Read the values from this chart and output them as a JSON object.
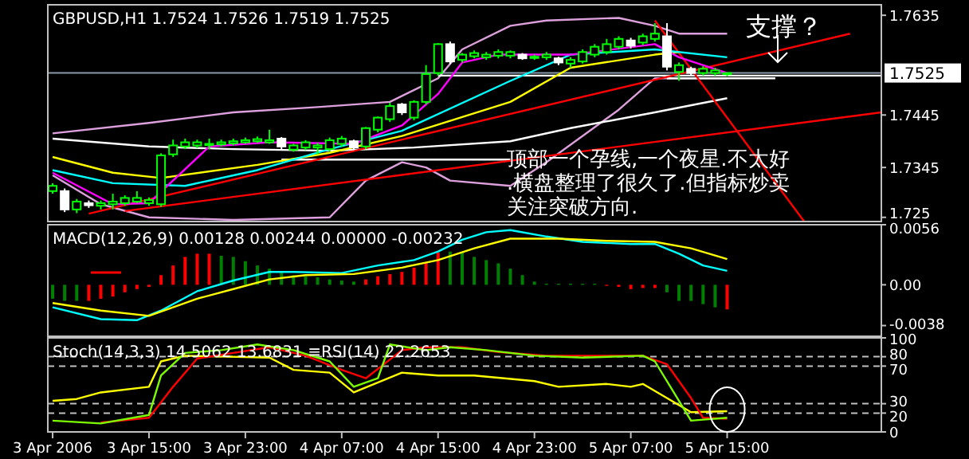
{
  "chart_data": [
    {
      "type": "candlestick",
      "title": "GBPUSD,H1 1.7524 1.7526 1.7519 1.7525",
      "x": [
        "2006-04-03T07:00",
        "2006-04-03T08:00",
        "2006-04-03T09:00",
        "2006-04-03T10:00",
        "2006-04-03T11:00",
        "2006-04-03T12:00",
        "2006-04-03T13:00",
        "2006-04-03T14:00",
        "2006-04-03T15:00",
        "2006-04-03T16:00",
        "2006-04-03T17:00",
        "2006-04-03T18:00",
        "2006-04-03T19:00",
        "2006-04-03T20:00",
        "2006-04-03T21:00",
        "2006-04-03T22:00",
        "2006-04-03T23:00",
        "2006-04-04T00:00",
        "2006-04-04T01:00",
        "2006-04-04T02:00",
        "2006-04-04T03:00",
        "2006-04-04T04:00",
        "2006-04-04T05:00",
        "2006-04-04T06:00",
        "2006-04-04T07:00",
        "2006-04-04T08:00",
        "2006-04-04T09:00",
        "2006-04-04T10:00",
        "2006-04-04T11:00",
        "2006-04-04T12:00",
        "2006-04-04T13:00",
        "2006-04-04T14:00",
        "2006-04-04T15:00",
        "2006-04-04T16:00",
        "2006-04-04T17:00",
        "2006-04-04T18:00",
        "2006-04-04T19:00",
        "2006-04-04T20:00",
        "2006-04-04T21:00",
        "2006-04-04T22:00",
        "2006-04-04T23:00",
        "2006-04-05T00:00",
        "2006-04-05T01:00",
        "2006-04-05T02:00",
        "2006-04-05T03:00",
        "2006-04-05T04:00",
        "2006-04-05T05:00",
        "2006-04-05T06:00",
        "2006-04-05T07:00",
        "2006-04-05T08:00",
        "2006-04-05T09:00",
        "2006-04-05T10:00",
        "2006-04-05T11:00",
        "2006-04-05T12:00",
        "2006-04-05T13:00",
        "2006-04-05T14:00",
        "2006-04-05T15:00"
      ],
      "ohlc": [
        [
          1.73,
          1.7315,
          1.7295,
          1.731
        ],
        [
          1.73,
          1.7305,
          1.726,
          1.7265
        ],
        [
          1.7265,
          1.7285,
          1.7258,
          1.728
        ],
        [
          1.7277,
          1.7282,
          1.7268,
          1.7273
        ],
        [
          1.7272,
          1.7282,
          1.7265,
          1.7277
        ],
        [
          1.7275,
          1.7295,
          1.7265,
          1.728
        ],
        [
          1.7277,
          1.7292,
          1.7272,
          1.7287
        ],
        [
          1.728,
          1.73,
          1.7277,
          1.7287
        ],
        [
          1.7277,
          1.7288,
          1.7272,
          1.7283
        ],
        [
          1.7275,
          1.7372,
          1.727,
          1.7368
        ],
        [
          1.737,
          1.7398,
          1.7365,
          1.7387
        ],
        [
          1.7385,
          1.74,
          1.738,
          1.7393
        ],
        [
          1.7387,
          1.7398,
          1.7382,
          1.7393
        ],
        [
          1.7388,
          1.74,
          1.738,
          1.739
        ],
        [
          1.7389,
          1.7398,
          1.7385,
          1.7393
        ],
        [
          1.7391,
          1.74,
          1.7387,
          1.7395
        ],
        [
          1.7393,
          1.7402,
          1.739,
          1.7397
        ],
        [
          1.7395,
          1.7404,
          1.7392,
          1.7399
        ],
        [
          1.7393,
          1.7417,
          1.739,
          1.7397
        ],
        [
          1.74,
          1.7403,
          1.738,
          1.7385
        ],
        [
          1.7379,
          1.739,
          1.7375,
          1.7387
        ],
        [
          1.7383,
          1.7397,
          1.7378,
          1.7393
        ],
        [
          1.7383,
          1.7392,
          1.737,
          1.7387
        ],
        [
          1.738,
          1.7402,
          1.7375,
          1.7397
        ],
        [
          1.739,
          1.7405,
          1.7385,
          1.74
        ],
        [
          1.7395,
          1.7398,
          1.7378,
          1.7383
        ],
        [
          1.7385,
          1.7422,
          1.738,
          1.742
        ],
        [
          1.7417,
          1.7442,
          1.7412,
          1.744
        ],
        [
          1.7437,
          1.7468,
          1.7432,
          1.7462
        ],
        [
          1.7465,
          1.7468,
          1.7445,
          1.745
        ],
        [
          1.744,
          1.7473,
          1.7435,
          1.747
        ],
        [
          1.747,
          1.754,
          1.7465,
          1.7523
        ],
        [
          1.7525,
          1.7582,
          1.752,
          1.758
        ],
        [
          1.758,
          1.7585,
          1.7542,
          1.7547
        ],
        [
          1.755,
          1.7563,
          1.7545,
          1.756
        ],
        [
          1.7557,
          1.7568,
          1.7553,
          1.7563
        ],
        [
          1.7555,
          1.7565,
          1.755,
          1.756
        ],
        [
          1.7558,
          1.757,
          1.7553,
          1.7565
        ],
        [
          1.7558,
          1.7568,
          1.7553,
          1.7565
        ],
        [
          1.756,
          1.7563,
          1.755,
          1.7553
        ],
        [
          1.7555,
          1.756,
          1.755,
          1.7556
        ],
        [
          1.7555,
          1.7565,
          1.755,
          1.756
        ],
        [
          1.7553,
          1.7556,
          1.754,
          1.7545
        ],
        [
          1.7543,
          1.7555,
          1.7535,
          1.755
        ],
        [
          1.7547,
          1.757,
          1.7543,
          1.7565
        ],
        [
          1.756,
          1.758,
          1.7555,
          1.7575
        ],
        [
          1.7565,
          1.759,
          1.756,
          1.758
        ],
        [
          1.7575,
          1.7595,
          1.757,
          1.759
        ],
        [
          1.7587,
          1.7592,
          1.7572,
          1.7577
        ],
        [
          1.7583,
          1.76,
          1.7578,
          1.7595
        ],
        [
          1.759,
          1.762,
          1.7585,
          1.76
        ],
        [
          1.7595,
          1.762,
          1.753,
          1.7537
        ],
        [
          1.7527,
          1.7545,
          1.751,
          1.754
        ],
        [
          1.7533,
          1.7537,
          1.752,
          1.7525
        ],
        [
          1.7525,
          1.7538,
          1.752,
          1.7533
        ],
        [
          1.7525,
          1.7535,
          1.752,
          1.753
        ],
        [
          1.7524,
          1.7526,
          1.7519,
          1.7525
        ]
      ],
      "series": [
        {
          "type": "line",
          "color": "#dda0dd",
          "x": [
            "2006-04-03T07:00",
            "2006-04-03T15:00",
            "2006-04-03T22:00",
            "2006-04-04T05:00",
            "2006-04-04T11:00",
            "2006-04-04T15:00",
            "2006-04-04T17:00",
            "2006-04-04T21:00",
            "2006-04-05T00:00",
            "2006-04-05T06:00",
            "2006-04-05T09:00",
            "2006-04-05T11:00",
            "2006-04-05T15:00"
          ],
          "values": [
            1.741,
            1.743,
            1.745,
            1.746,
            1.747,
            1.7515,
            1.757,
            1.7615,
            1.7625,
            1.763,
            1.7615,
            1.76,
            1.76
          ]
        },
        {
          "type": "line",
          "color": "#dda0dd",
          "x": [
            "2006-04-03T07:00",
            "2006-04-03T11:00",
            "2006-04-03T15:00",
            "2006-04-03T22:00",
            "2006-04-04T06:00",
            "2006-04-04T09:00",
            "2006-04-04T12:00",
            "2006-04-04T14:00",
            "2006-04-04T16:00",
            "2006-04-04T21:00",
            "2006-04-05T00:00",
            "2006-04-05T06:00",
            "2006-04-05T09:00",
            "2006-04-05T15:00"
          ],
          "values": [
            1.733,
            1.7275,
            1.725,
            1.7245,
            1.725,
            1.732,
            1.7355,
            1.7345,
            1.732,
            1.731,
            1.7355,
            1.7455,
            1.7515,
            1.7515
          ]
        },
        {
          "type": "line",
          "color": "#ffffff",
          "x": [
            "2006-04-03T07:00",
            "2006-04-03T15:00",
            "2006-04-03T22:00",
            "2006-04-04T06:00",
            "2006-04-04T13:00",
            "2006-04-04T21:00",
            "2006-04-05T02:00",
            "2006-04-05T09:00",
            "2006-04-05T15:00"
          ],
          "values": [
            1.74,
            1.7385,
            1.738,
            1.7377,
            1.7383,
            1.7395,
            1.742,
            1.745,
            1.7477
          ]
        },
        {
          "type": "line",
          "color": "#ffffff",
          "x": [
            "2006-04-04T02:00",
            "2006-04-04T21:00"
          ],
          "values": [
            1.736,
            1.736
          ]
        },
        {
          "type": "line",
          "color": "#ffffff",
          "x": [
            "2006-04-04T15:00",
            "2006-04-06T03:48"
          ],
          "values": [
            1.752,
            1.752
          ]
        },
        {
          "type": "line",
          "color": "#ffffff",
          "x": [
            "2006-04-05T10:00",
            "2006-04-05T19:00"
          ],
          "values": [
            1.7515,
            1.7515
          ]
        },
        {
          "type": "line",
          "color": "#ff0000",
          "x": [
            "2006-04-03T10:00",
            "2006-04-06T01:12"
          ],
          "values": [
            1.7257,
            1.76
          ]
        },
        {
          "type": "line",
          "color": "#ff0000",
          "x": [
            "2006-04-03T13:00",
            "2006-04-06T03:48"
          ],
          "values": [
            1.7262,
            1.745
          ]
        },
        {
          "type": "line",
          "color": "#ff0000",
          "x": [
            "2006-04-05T09:00",
            "2006-04-05T21:24"
          ],
          "values": [
            1.7625,
            1.7242
          ]
        },
        {
          "type": "line",
          "color": "#ffff00",
          "x": [
            "2006-04-03T07:00",
            "2006-04-03T12:00",
            "2006-04-03T16:00",
            "2006-04-04T00:00",
            "2006-04-04T06:00",
            "2006-04-04T12:00",
            "2006-04-04T21:00",
            "2006-04-05T02:00",
            "2006-04-05T09:00",
            "2006-04-05T11:00"
          ],
          "values": [
            1.7365,
            1.7335,
            1.7325,
            1.735,
            1.7373,
            1.7405,
            1.747,
            1.7535,
            1.756,
            1.7565
          ]
        },
        {
          "type": "line",
          "color": "#00ffff",
          "x": [
            "2006-04-03T07:00",
            "2006-04-03T12:00",
            "2006-04-03T18:00",
            "2006-04-04T00:00",
            "2006-04-04T06:00",
            "2006-04-04T12:00",
            "2006-04-04T21:00",
            "2006-04-05T02:00",
            "2006-04-05T09:00",
            "2006-04-05T15:00"
          ],
          "values": [
            1.734,
            1.7315,
            1.731,
            1.734,
            1.738,
            1.7415,
            1.751,
            1.756,
            1.757,
            1.7555
          ]
        },
        {
          "type": "line",
          "color": "#ff00ff",
          "x": [
            "2006-04-03T07:00",
            "2006-04-03T12:00",
            "2006-04-03T15:00",
            "2006-04-03T20:00",
            "2006-04-04T01:00",
            "2006-04-04T08:00",
            "2006-04-04T12:00",
            "2006-04-04T15:00",
            "2006-04-04T17:00",
            "2006-04-04T20:00",
            "2006-04-05T02:00",
            "2006-04-05T09:00",
            "2006-04-05T11:00",
            "2006-04-05T15:00"
          ],
          "values": [
            1.7335,
            1.7275,
            1.7277,
            1.7385,
            1.7393,
            1.739,
            1.7425,
            1.7485,
            1.7545,
            1.756,
            1.756,
            1.758,
            1.7555,
            1.7525
          ]
        }
      ],
      "xlim": [
        "2006-04-03T06:36",
        "2006-04-06T03:48"
      ],
      "ylim": [
        1.7242,
        1.7655
      ],
      "yticks": [
        1.7635,
        1.7445,
        1.7345,
        1.725
      ],
      "ref_lines": [
        {
          "axis": "y",
          "value": 1.7525,
          "label": "1.7525",
          "color": "#8899aa"
        }
      ],
      "annotations": [
        "支撑？",
        "顶部一个孕线,一个夜星.不太好",
        ".横盘整理了很久了.但指标炒卖",
        "关注突破方向."
      ],
      "tick_labels": "y"
    },
    {
      "type": "bar",
      "title": "MACD(12,26,9) 0.00128 0.00244 0.00000 -0.00232",
      "series": [
        {
          "type": "bar",
          "x": [
            "2006-04-03T07:00",
            "2006-04-03T08:00",
            "2006-04-03T09:00",
            "2006-04-03T10:00",
            "2006-04-03T11:00",
            "2006-04-03T12:00",
            "2006-04-03T13:00",
            "2006-04-03T14:00",
            "2006-04-03T15:00",
            "2006-04-03T16:00",
            "2006-04-03T17:00",
            "2006-04-03T18:00",
            "2006-04-03T19:00",
            "2006-04-03T20:00",
            "2006-04-03T21:00",
            "2006-04-03T22:00",
            "2006-04-03T23:00",
            "2006-04-04T00:00",
            "2006-04-04T01:00",
            "2006-04-04T02:00",
            "2006-04-04T03:00",
            "2006-04-04T04:00",
            "2006-04-04T05:00",
            "2006-04-04T06:00",
            "2006-04-04T07:00",
            "2006-04-04T08:00",
            "2006-04-04T09:00",
            "2006-04-04T10:00",
            "2006-04-04T11:00",
            "2006-04-04T12:00",
            "2006-04-04T13:00",
            "2006-04-04T14:00",
            "2006-04-04T15:00",
            "2006-04-04T16:00",
            "2006-04-04T17:00",
            "2006-04-04T18:00",
            "2006-04-04T19:00",
            "2006-04-04T20:00",
            "2006-04-04T21:00",
            "2006-04-04T22:00",
            "2006-04-04T23:00",
            "2006-04-05T00:00",
            "2006-04-05T01:00",
            "2006-04-05T02:00",
            "2006-04-05T03:00",
            "2006-04-05T04:00",
            "2006-04-05T05:00",
            "2006-04-05T06:00",
            "2006-04-05T07:00",
            "2006-04-05T08:00",
            "2006-04-05T09:00",
            "2006-04-05T10:00",
            "2006-04-05T11:00",
            "2006-04-05T12:00",
            "2006-04-05T13:00",
            "2006-04-05T14:00",
            "2006-04-05T15:00"
          ],
          "values": [
            -0.0013,
            -0.0015,
            -0.0015,
            -0.0015,
            -0.0013,
            -0.0011,
            -0.0007,
            -0.0004,
            -0.0002,
            0.0009,
            0.0018,
            0.0026,
            0.0029,
            0.0029,
            0.0027,
            0.0026,
            0.0022,
            0.0018,
            0.0015,
            0.0012,
            0.0009,
            0.0008,
            0.0007,
            0.0005,
            0.0004,
            0.0003,
            0.0005,
            0.0008,
            0.001,
            0.0012,
            0.0016,
            0.0021,
            0.003,
            0.0031,
            0.003,
            0.0026,
            0.0023,
            0.002,
            0.0015,
            0.0009,
            0.0003,
            0.0001,
            0.0001,
            0.0001,
            0.0001,
            0.0001,
            -0.0001,
            -0.0002,
            -0.0004,
            -0.0003,
            -0.0003,
            -0.0007,
            -0.0015,
            -0.0015,
            -0.0018,
            -0.0021,
            -0.0023
          ],
          "colors": [
            "#008000",
            "#008000",
            "#008000",
            "#ff0000",
            "#ff0000",
            "#ff0000",
            "#ff0000",
            "#ff0000",
            "#ff0000",
            "#ff0000",
            "#ff0000",
            "#ff0000",
            "#ff0000",
            "#ff0000",
            "#008000",
            "#008000",
            "#008000",
            "#008000",
            "#008000",
            "#008000",
            "#008000",
            "#008000",
            "#008000",
            "#008000",
            "#008000",
            "#008000",
            "#ff0000",
            "#ff0000",
            "#ff0000",
            "#ff0000",
            "#ff0000",
            "#ff0000",
            "#ff0000",
            "#008000",
            "#008000",
            "#008000",
            "#008000",
            "#008000",
            "#008000",
            "#008000",
            "#008000",
            "#008000",
            "#008000",
            "#008000",
            "#008000",
            "#008000",
            "#ff0000",
            "#ff0000",
            "#ff0000",
            "#ff0000",
            "#ff0000",
            "#008000",
            "#008000",
            "#008000",
            "#008000",
            "#008000",
            "#ff0000"
          ]
        },
        {
          "type": "line",
          "color": "#00ffff",
          "x": [
            "2006-04-03T07:00",
            "2006-04-03T11:00",
            "2006-04-03T14:00",
            "2006-04-03T16:00",
            "2006-04-03T19:00",
            "2006-04-03T22:00",
            "2006-04-04T01:00",
            "2006-04-04T03:00",
            "2006-04-04T07:00",
            "2006-04-04T10:00",
            "2006-04-04T13:00",
            "2006-04-04T15:00",
            "2006-04-04T17:00",
            "2006-04-04T19:00",
            "2006-04-04T21:00",
            "2006-04-05T00:00",
            "2006-04-05T03:00",
            "2006-04-05T07:00",
            "2006-04-05T09:00",
            "2006-04-05T11:00",
            "2006-04-05T13:00",
            "2006-04-05T15:00"
          ],
          "values": [
            -0.0021,
            -0.0032,
            -0.0033,
            -0.0024,
            -0.0006,
            0.0004,
            0.0012,
            0.0012,
            0.0011,
            0.0018,
            0.0023,
            0.0031,
            0.0042,
            0.0049,
            0.0051,
            0.0045,
            0.004,
            0.0038,
            0.0038,
            0.0029,
            0.0018,
            0.0013
          ]
        },
        {
          "type": "line",
          "color": "#ffff00",
          "x": [
            "2006-04-03T07:00",
            "2006-04-03T11:00",
            "2006-04-03T15:00",
            "2006-04-03T19:00",
            "2006-04-03T22:00",
            "2006-04-04T01:00",
            "2006-04-04T04:00",
            "2006-04-04T08:00",
            "2006-04-04T12:00",
            "2006-04-04T15:00",
            "2006-04-04T18:00",
            "2006-04-04T21:00",
            "2006-04-05T01:00",
            "2006-04-05T05:00",
            "2006-04-05T09:00",
            "2006-04-05T12:00",
            "2006-04-05T15:00"
          ],
          "values": [
            -0.0017,
            -0.0024,
            -0.0029,
            -0.0013,
            -0.0004,
            0.0005,
            0.0009,
            0.001,
            0.0016,
            0.0023,
            0.0034,
            0.0043,
            0.0043,
            0.0041,
            0.004,
            0.0034,
            0.0024
          ]
        }
      ],
      "xlim": [
        "2006-04-03T06:36",
        "2006-04-06T03:48"
      ],
      "ylim": [
        -0.0048,
        0.0056
      ],
      "yticks": [
        0.0056,
        {
          "value": 0,
          "label": "0.00"
        },
        -0.0038
      ],
      "tick_labels": "y"
    },
    {
      "type": "line",
      "title": "Stoch(14,3,3) 14.5062 13.6831 ≡RSI(14) 22.2653",
      "series": [
        {
          "type": "line",
          "color": "#ffff00",
          "x": [
            "2006-04-03T07:00",
            "2006-04-03T09:00",
            "2006-04-03T11:00",
            "2006-04-03T15:00",
            "2006-04-03T16:00",
            "2006-04-03T18:00",
            "2006-04-04T01:00",
            "2006-04-04T03:00",
            "2006-04-04T06:00",
            "2006-04-04T08:00",
            "2006-04-04T12:00",
            "2006-04-04T15:00",
            "2006-04-04T18:00",
            "2006-04-04T23:00",
            "2006-04-05T01:00",
            "2006-04-05T05:00",
            "2006-04-05T07:00",
            "2006-04-05T08:00",
            "2006-04-05T10:00",
            "2006-04-05T12:00",
            "2006-04-05T15:00"
          ],
          "values": [
            33,
            35,
            42,
            48,
            75,
            81,
            79,
            66,
            63,
            42,
            63,
            60,
            60,
            54,
            48,
            51,
            48,
            51,
            36,
            21,
            22
          ]
        },
        {
          "type": "line",
          "color": "#ff0000",
          "x": [
            "2006-04-03T11:00",
            "2006-04-03T15:00",
            "2006-04-03T17:00",
            "2006-04-03T19:00",
            "2006-04-03T22:00",
            "2006-04-04T01:00",
            "2006-04-04T04:00",
            "2006-04-04T07:00",
            "2006-04-04T09:00",
            "2006-04-04T12:00",
            "2006-04-04T14:00",
            "2006-04-04T17:00",
            "2006-04-04T20:00",
            "2006-04-05T00:00",
            "2006-04-05T08:00",
            "2006-04-05T10:00",
            "2006-04-05T12:00",
            "2006-04-05T13:00",
            "2006-04-05T15:00"
          ],
          "values": [
            10,
            15,
            48,
            78,
            84,
            90,
            81,
            66,
            57,
            87,
            90,
            90,
            85,
            81,
            81,
            72,
            36,
            15,
            14
          ]
        },
        {
          "type": "line",
          "color": "#7cfc00",
          "x": [
            "2006-04-03T07:00",
            "2006-04-03T11:00",
            "2006-04-03T15:00",
            "2006-04-03T16:00",
            "2006-04-03T18:00",
            "2006-04-03T21:00",
            "2006-04-04T00:00",
            "2006-04-04T03:00",
            "2006-04-04T06:00",
            "2006-04-04T08:00",
            "2006-04-04T10:00",
            "2006-04-04T11:00",
            "2006-04-04T14:00",
            "2006-04-04T16:00",
            "2006-04-04T19:00",
            "2006-04-04T23:00",
            "2006-04-05T03:00",
            "2006-04-05T08:00",
            "2006-04-05T09:00",
            "2006-04-05T12:00",
            "2006-04-05T13:00",
            "2006-04-05T15:00"
          ],
          "values": [
            12,
            9,
            18,
            60,
            84,
            87,
            93,
            87,
            75,
            48,
            57,
            93,
            87,
            90,
            87,
            81,
            79,
            81,
            75,
            12,
            13,
            15
          ]
        }
      ],
      "xlim": [
        "2006-04-03T06:36",
        "2006-04-06T03:48"
      ],
      "ylim": [
        0,
        100
      ],
      "yticks": [
        100,
        80,
        70,
        30,
        20,
        0
      ],
      "xticks": [
        {
          "value": "2006-04-03T07:00",
          "label": "3 Apr 2006"
        },
        {
          "value": "2006-04-03T15:00",
          "label": "3 Apr 15:00"
        },
        {
          "value": "2006-04-03T23:00",
          "label": "3 Apr 23:00"
        },
        {
          "value": "2006-04-04T07:00",
          "label": "4 Apr 07:00"
        },
        {
          "value": "2006-04-04T15:00",
          "label": "4 Apr 15:00"
        },
        {
          "value": "2006-04-04T23:00",
          "label": "4 Apr 23:00"
        },
        {
          "value": "2006-04-05T07:00",
          "label": "5 Apr 07:00"
        },
        {
          "value": "2006-04-05T15:00",
          "label": "5 Apr 15:00"
        }
      ],
      "ref_lines": [
        {
          "axis": "y",
          "value": 80,
          "color": "#c0c0c0",
          "line_style": "dashed"
        },
        {
          "axis": "y",
          "value": 70,
          "color": "#c0c0c0",
          "line_style": "dashed"
        },
        {
          "axis": "y",
          "value": 30,
          "color": "#c0c0c0",
          "line_style": "dashed"
        },
        {
          "axis": "y",
          "value": 20,
          "color": "#c0c0c0",
          "line_style": "dashed"
        }
      ]
    }
  ]
}
